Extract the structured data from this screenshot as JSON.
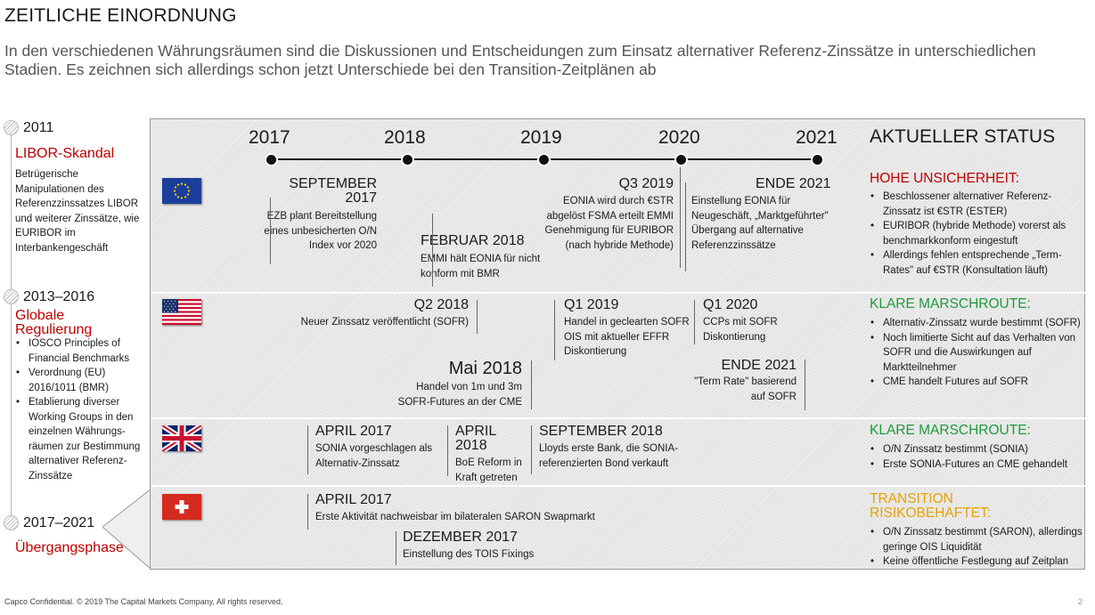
{
  "header": {
    "title": "ZEITLICHE EINORDNUNG",
    "subtitle": "In den verschiedenen Währungsräumen sind die Diskussionen und Entscheidungen zum Einsatz alternativer Referenz-Zinssätze in unterschiedlichen Stadien. Es zeichnen sich allerdings schon jetzt Unterschiede bei den Transition-Zeitplänen ab"
  },
  "phases": [
    {
      "year": "2011",
      "heading": "LIBOR-Skandal",
      "text": "Betrügerische Manipulationen des Referenzzinssatzes LIBOR und weiterer Zinssätze, wie EURIBOR im Interbankengeschäft"
    },
    {
      "year": "2013–2016",
      "heading": "Globale Regulierung",
      "items": [
        "IOSCO Principles of Financial Benchmarks",
        "Verordnung (EU) 2016/1011 (BMR)",
        "Etablierung diverser Working Groups in den einzelnen Währungs-räumen zur Bestimmung alternativer Referenz-Zinssätze"
      ]
    },
    {
      "year": "2017–2021",
      "heading": "Übergangsphase"
    }
  ],
  "timeline": {
    "years": [
      "2017",
      "2018",
      "2019",
      "2020",
      "2021"
    ],
    "status_title": "AKTUELLER STATUS"
  },
  "eu": {
    "flag": "eu-flag-icon",
    "events": [
      {
        "heading": "SEPTEMBER 2017",
        "text": "EZB plant Bereitstellung eines unbesicherten O/N Index vor 2020"
      },
      {
        "heading": "FEBRUAR 2018",
        "text": "EMMI hält EONIA für nicht konform mit BMR"
      },
      {
        "heading": "Q3 2019",
        "text": "EONIA wird durch €STR abgelöst FSMA erteilt EMMI Genehmigung für EURIBOR (nach hybride Methode)"
      },
      {
        "heading": "ENDE 2021",
        "text": "Einstellung EONIA für Neugeschäft, „Marktgeführter\" Übergang auf alternative Referenzzinssätze"
      }
    ],
    "status": {
      "heading": "HOHE UNSICHERHEIT:",
      "color": "#c00000",
      "items": [
        "Beschlossener alternativer Referenz-Zinssatz ist €STR (ESTER)",
        "EURIBOR (hybride Methode) vorerst als benchmarkkonform eingestuft",
        "Allerdings fehlen entsprechende „Term-Rates\" auf €STR (Konsultation läuft)"
      ]
    }
  },
  "us": {
    "flag": "us-flag-icon",
    "events": [
      {
        "heading": "Q2 2018",
        "text": "Neuer Zinssatz veröffentlicht (SOFR)"
      },
      {
        "heading": "Mai 2018",
        "text": "Handel von 1m und 3m SOFR-Futures an der CME"
      },
      {
        "heading": "Q1 2019",
        "text": "Handel in geclearten SOFR OIS mit aktueller EFFR Diskontierung"
      },
      {
        "heading": "Q1 2020",
        "text": "CCPs mit SOFR Diskontierung"
      },
      {
        "heading": "ENDE 2021",
        "text": "\"Term Rate\" basierend auf SOFR"
      }
    ],
    "status": {
      "heading": "KLARE MARSCHROUTE:",
      "color": "#1e9a3c",
      "items": [
        "Alternativ-Zinssatz wurde bestimmt (SOFR)",
        "Noch limitierte Sicht auf das Verhalten von SOFR und die Auswirkungen auf Marktteilnehmer",
        "CME handelt Futures auf SOFR"
      ]
    }
  },
  "uk": {
    "flag": "uk-flag-icon",
    "events": [
      {
        "heading": "APRIL 2017",
        "text": "SONIA vorgeschlagen als Alternativ-Zinssatz"
      },
      {
        "heading": "APRIL 2018",
        "text": "BoE Reform in Kraft getreten"
      },
      {
        "heading": "SEPTEMBER 2018",
        "text": "Lloyds erste Bank, die SONIA-referenzierten Bond verkauft"
      }
    ],
    "status": {
      "heading": "KLARE MARSCHROUTE:",
      "color": "#1e9a3c",
      "items": [
        "O/N Zinssatz bestimmt (SONIA)",
        "Erste SONIA-Futures an CME gehandelt"
      ]
    }
  },
  "ch": {
    "flag": "swiss-flag-icon",
    "events": [
      {
        "heading": "APRIL 2017",
        "text": "Erste Aktivität nachweisbar im bilateralen SARON Swapmarkt"
      },
      {
        "heading": "DEZEMBER 2017",
        "text": "Einstellung des TOIS Fixings"
      }
    ],
    "status": {
      "heading": "TRANSITION RISIKOBEHAFTET:",
      "color": "#e8a200",
      "items": [
        "O/N Zinssatz bestimmt (SARON), allerdings geringe OIS Liquidität",
        "Keine öffentliche Festlegung auf Zeitplan"
      ]
    }
  },
  "footer": {
    "text": "Capco Confidential. © 2019 The Capital Markets Company, All rights reserved.",
    "page": "2"
  }
}
